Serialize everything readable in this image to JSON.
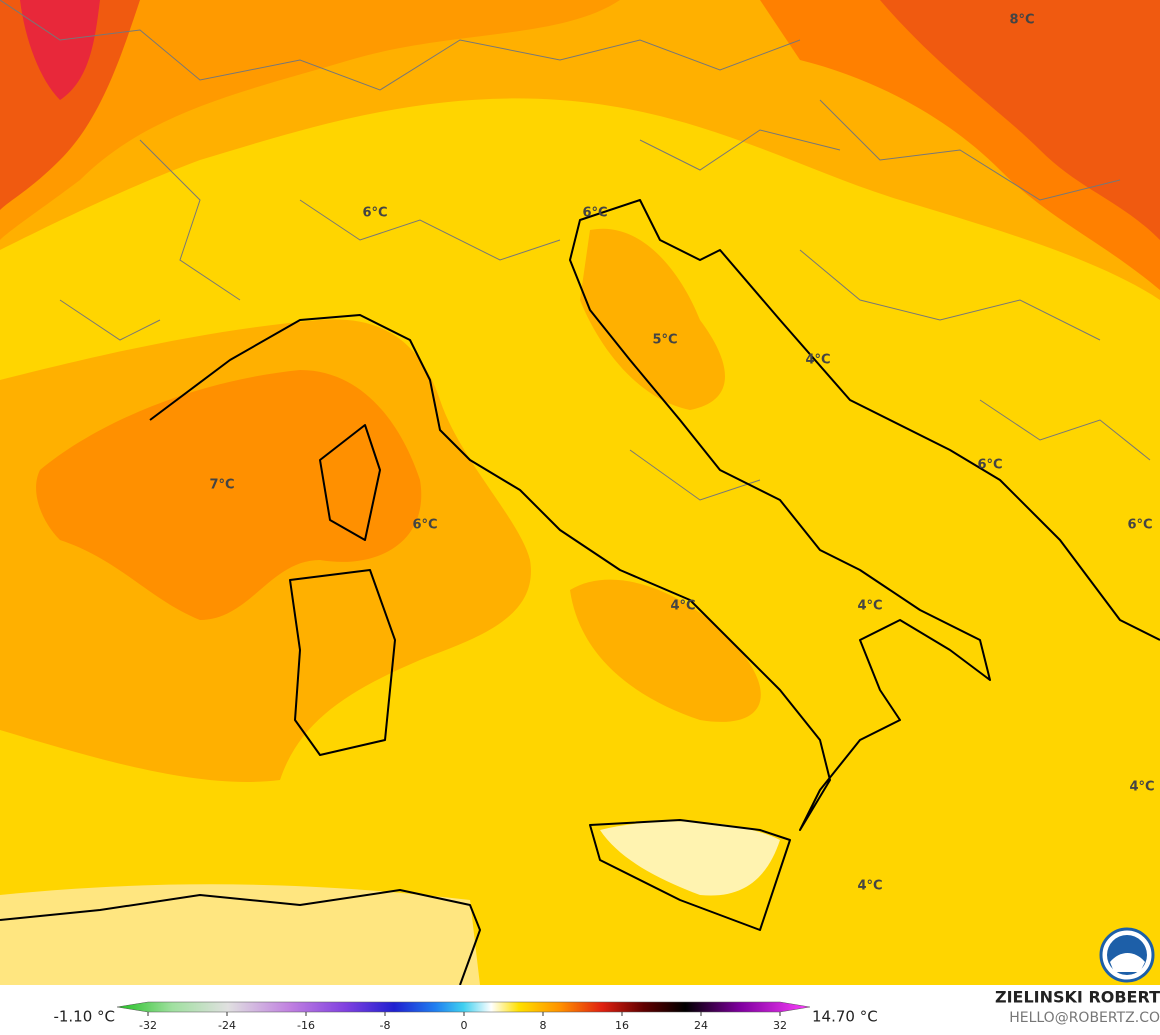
{
  "map": {
    "labels": [
      "8°C",
      "6°C",
      "6°C",
      "5°C",
      "4°C",
      "6°C",
      "7°C",
      "6°C",
      "6°C",
      "4°C",
      "4°C",
      "4°C",
      "4°C"
    ]
  },
  "colorbar": {
    "min_label": "-1.10 °C",
    "max_label": "14.70 °C",
    "lim": [
      -32,
      32
    ],
    "ticks": [
      -32,
      -24,
      -16,
      -8,
      0,
      8,
      16,
      24,
      32
    ]
  },
  "credit": {
    "name": "ZIELINSKI ROBERT",
    "email": "HELLO@ROBERTZ.CO"
  }
}
